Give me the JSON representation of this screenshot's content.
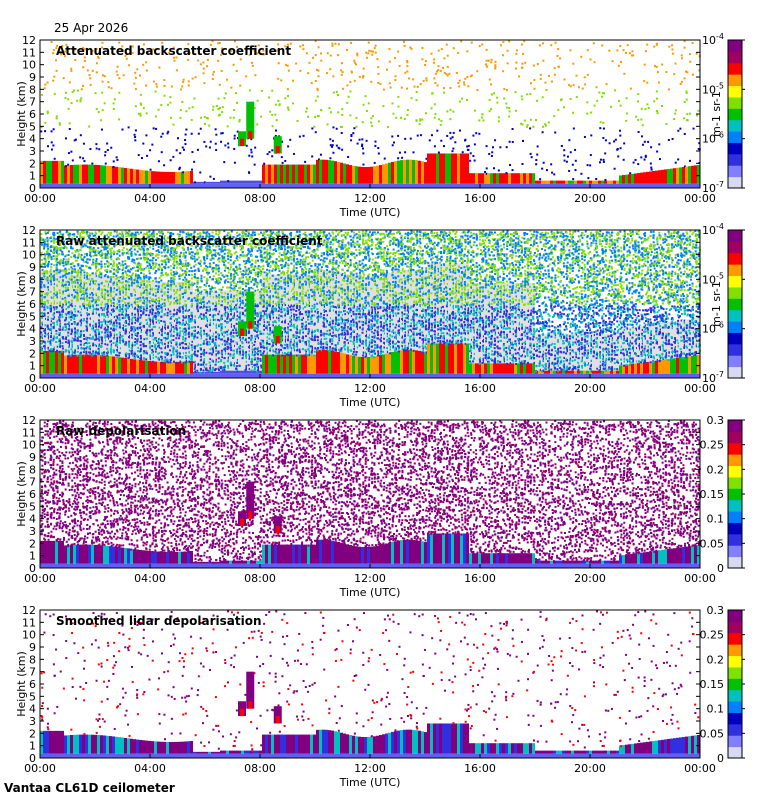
{
  "header": {
    "date": "25 Apr 2026"
  },
  "footer": {
    "site": "Vantaa CL61D ceilometer"
  },
  "colors": {
    "background": "#ffffff",
    "low_fill_backscatter": "#e0e0e0",
    "colormap": [
      "#d8d8f0",
      "#7f7fff",
      "#3030e0",
      "#0000c0",
      "#0080ff",
      "#00c0c0",
      "#00c000",
      "#80e000",
      "#ffff00",
      "#ff9900",
      "#ff0000",
      "#a00060",
      "#800080"
    ]
  },
  "chart_data": [
    {
      "type": "heatmap",
      "title": "Attenuated backscatter coefficient",
      "xlabel": "Time (UTC)",
      "ylabel": "Height (km)",
      "xticks": [
        "00:00",
        "04:00",
        "08:00",
        "12:00",
        "16:00",
        "20:00",
        "00:00"
      ],
      "yticks": [
        "0",
        "1",
        "2",
        "3",
        "4",
        "5",
        "6",
        "7",
        "8",
        "9",
        "10",
        "11",
        "12"
      ],
      "ylim": [
        0,
        12
      ],
      "xlim_hours": [
        0,
        24
      ],
      "colorbar": {
        "scale": "log",
        "ticks": [
          "10-4",
          "10-5",
          "10-6",
          "10-7"
        ],
        "unit": "m-1 sr-1"
      },
      "noise_density": 0.06,
      "background": "white"
    },
    {
      "type": "heatmap",
      "title": "Raw attenuated backscatter coefficient",
      "xlabel": "Time (UTC)",
      "ylabel": "Height (km)",
      "xticks": [
        "00:00",
        "04:00",
        "08:00",
        "12:00",
        "16:00",
        "20:00",
        "00:00"
      ],
      "yticks": [
        "0",
        "1",
        "2",
        "3",
        "4",
        "5",
        "6",
        "7",
        "8",
        "9",
        "10",
        "11",
        "12"
      ],
      "ylim": [
        0,
        12
      ],
      "xlim_hours": [
        0,
        24
      ],
      "colorbar": {
        "scale": "log",
        "ticks": [
          "10-4",
          "10-5",
          "10-6",
          "10-7"
        ],
        "unit": "m-1 sr-1"
      },
      "noise_density": 0.85,
      "background": "grey"
    },
    {
      "type": "heatmap",
      "title": "Raw depolarisation",
      "xlabel": "Time (UTC)",
      "ylabel": "Height (km)",
      "xticks": [
        "00:00",
        "04:00",
        "08:00",
        "12:00",
        "16:00",
        "20:00",
        "00:00"
      ],
      "yticks": [
        "0",
        "1",
        "2",
        "3",
        "4",
        "5",
        "6",
        "7",
        "8",
        "9",
        "10",
        "11",
        "12"
      ],
      "ylim": [
        0,
        12
      ],
      "xlim_hours": [
        0,
        24
      ],
      "colorbar": {
        "scale": "linear",
        "ticks": [
          "0.3",
          "0.25",
          "0.2",
          "0.15",
          "0.1",
          "0.05",
          "0"
        ],
        "range": [
          0,
          0.3
        ]
      },
      "noise_density": 0.55,
      "background": "white"
    },
    {
      "type": "heatmap",
      "title": "Smoothed lidar depolarisation",
      "xlabel": "Time (UTC)",
      "ylabel": "Height (km)",
      "xticks": [
        "00:00",
        "04:00",
        "08:00",
        "12:00",
        "16:00",
        "20:00",
        "00:00"
      ],
      "yticks": [
        "0",
        "1",
        "2",
        "3",
        "4",
        "5",
        "6",
        "7",
        "8",
        "9",
        "10",
        "11",
        "12"
      ],
      "ylim": [
        0,
        12
      ],
      "xlim_hours": [
        0,
        24
      ],
      "colorbar": {
        "scale": "linear",
        "ticks": [
          "0.3",
          "0.25",
          "0.2",
          "0.15",
          "0.1",
          "0.05",
          "0"
        ],
        "range": [
          0,
          0.3
        ]
      },
      "noise_density": 0.04,
      "background": "white"
    }
  ]
}
